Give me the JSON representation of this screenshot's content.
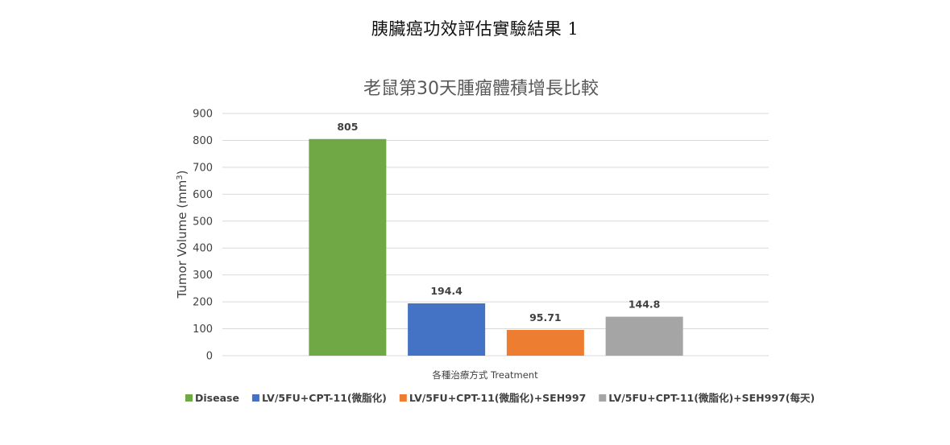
{
  "page": {
    "title": "胰臟癌功效評估實驗結果 1"
  },
  "chart_data": {
    "type": "bar",
    "title": "老鼠第30天腫瘤體積增長比較",
    "xlabel": "各種治療方式 Treatment",
    "ylabel": "Tumor Volume (mm",
    "ylabel_superscript": "3",
    "ylabel_suffix": ")",
    "ylim": [
      0,
      900
    ],
    "yticks": [
      0,
      100,
      200,
      300,
      400,
      500,
      600,
      700,
      800,
      900
    ],
    "grid": true,
    "legend_position": "bottom",
    "series": [
      {
        "name": "Disease",
        "value": 805,
        "label": "805",
        "color": "#70a845"
      },
      {
        "name": "LV/5FU+CPT-11(微脂化)",
        "value": 194.4,
        "label": "194.4",
        "color": "#4472c4"
      },
      {
        "name": "LV/5FU+CPT-11(微脂化)+SEH997",
        "value": 95.71,
        "label": "95.71",
        "color": "#ed7d31"
      },
      {
        "name": "LV/5FU+CPT-11(微脂化)+SEH997(每天)",
        "value": 144.8,
        "label": "144.8",
        "color": "#a5a5a5"
      }
    ]
  }
}
